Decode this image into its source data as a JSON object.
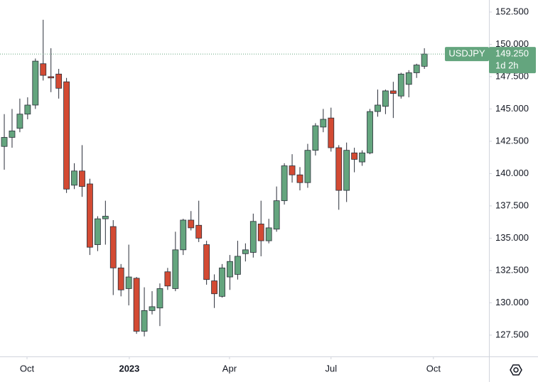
{
  "chart_data": {
    "type": "candlestick",
    "symbol": "USDJPY",
    "countdown": "1d 2h",
    "last_price": {
      "value": 149.25,
      "label": "149.250"
    },
    "categories": [
      null,
      null,
      null,
      null,
      null,
      null,
      null,
      null,
      null,
      null,
      null,
      null,
      null,
      null,
      null,
      null,
      null,
      null,
      null,
      null,
      null,
      null,
      null,
      null,
      null,
      null,
      null,
      null,
      null,
      null,
      null,
      null,
      null,
      null,
      null,
      null,
      null,
      null,
      null,
      null,
      null,
      null,
      null,
      null,
      null,
      null,
      null,
      null,
      null,
      null,
      null,
      null,
      null,
      null,
      null
    ],
    "open": [
      142.1,
      142.8,
      143.5,
      144.6,
      145.3,
      148.5,
      147.5,
      147.7,
      147.1,
      139.1,
      140.2,
      139.2,
      134.5,
      136.5,
      135.9,
      132.7,
      131.1,
      131.9,
      127.8,
      129.4,
      129.6,
      132.4,
      131.1,
      134.1,
      136.4,
      136.0,
      134.5,
      131.7,
      130.5,
      132.0,
      132.2,
      133.8,
      133.9,
      136.1,
      134.8,
      135.7,
      137.9,
      140.6,
      139.9,
      139.3,
      141.8,
      143.6,
      144.3,
      142.0,
      138.7,
      141.6,
      140.9,
      141.6,
      144.8,
      145.2,
      146.4,
      146.0,
      146.9,
      147.8,
      148.3
    ],
    "high": [
      144.6,
      145.0,
      145.8,
      145.9,
      148.9,
      151.9,
      149.7,
      148.1,
      147.4,
      140.8,
      142.2,
      139.6,
      136.7,
      137.9,
      136.4,
      133.0,
      134.5,
      132.0,
      131.2,
      130.9,
      131.5,
      132.7,
      135.5,
      136.5,
      137.1,
      137.9,
      134.8,
      132.2,
      133.0,
      133.7,
      134.8,
      134.6,
      136.9,
      137.9,
      136.5,
      139.0,
      140.8,
      141.5,
      140.5,
      142.3,
      143.9,
      145.0,
      145.1,
      142.2,
      142.4,
      142.0,
      141.8,
      145.0,
      146.5,
      146.5,
      147.1,
      147.8,
      148.0,
      148.5,
      149.7
    ],
    "low": [
      140.3,
      142.0,
      143.2,
      144.2,
      145.0,
      147.2,
      146.3,
      145.8,
      138.5,
      138.8,
      138.2,
      133.7,
      134.0,
      134.5,
      130.6,
      130.5,
      129.8,
      127.6,
      127.4,
      129.1,
      128.2,
      131.0,
      130.9,
      133.7,
      135.6,
      134.7,
      131.4,
      129.6,
      130.4,
      131.0,
      131.8,
      133.2,
      133.5,
      133.6,
      134.6,
      135.5,
      137.6,
      139.3,
      138.7,
      138.9,
      141.4,
      143.2,
      141.7,
      137.2,
      137.8,
      140.1,
      140.6,
      141.5,
      144.4,
      144.6,
      144.3,
      145.8,
      145.9,
      147.4,
      148.1
    ],
    "close": [
      142.8,
      143.3,
      144.6,
      145.3,
      148.7,
      147.6,
      147.4,
      146.6,
      138.8,
      140.2,
      139.0,
      134.3,
      136.5,
      136.7,
      132.7,
      131.0,
      132.0,
      127.8,
      129.4,
      129.7,
      131.1,
      131.3,
      134.1,
      136.4,
      135.8,
      135.0,
      131.8,
      130.7,
      132.7,
      133.2,
      133.6,
      134.1,
      136.3,
      134.8,
      135.8,
      137.9,
      140.6,
      139.9,
      139.3,
      141.8,
      143.7,
      144.2,
      142.0,
      138.7,
      141.8,
      141.1,
      141.6,
      144.8,
      145.3,
      146.4,
      146.2,
      147.7,
      147.8,
      148.4,
      149.25
    ],
    "up_color": "#64a57e",
    "down_color": "#d34a33",
    "xlim": [
      -0.55,
      62.3
    ],
    "ylim": [
      125.85,
      153.43
    ],
    "xticks": [
      {
        "value": 2.92,
        "label": "Oct"
      },
      {
        "value": 16.07,
        "label": "2023"
      },
      {
        "value": 28.95,
        "label": "Apr"
      },
      {
        "value": 42.0,
        "label": "Jul"
      },
      {
        "value": 55.16,
        "label": "Oct"
      }
    ],
    "yticks": [
      {
        "value": 127.5,
        "label": "127.500"
      },
      {
        "value": 130,
        "label": "130.000"
      },
      {
        "value": 132.5,
        "label": "132.500"
      },
      {
        "value": 135,
        "label": "135.000"
      },
      {
        "value": 137.5,
        "label": "137.500"
      },
      {
        "value": 140,
        "label": "140.000"
      },
      {
        "value": 142.5,
        "label": "142.500"
      },
      {
        "value": 145,
        "label": "145.000"
      },
      {
        "value": 147.5,
        "label": "147.500"
      },
      {
        "value": 150,
        "label": "150.000"
      },
      {
        "value": 152.5,
        "label": "152.500"
      }
    ]
  }
}
